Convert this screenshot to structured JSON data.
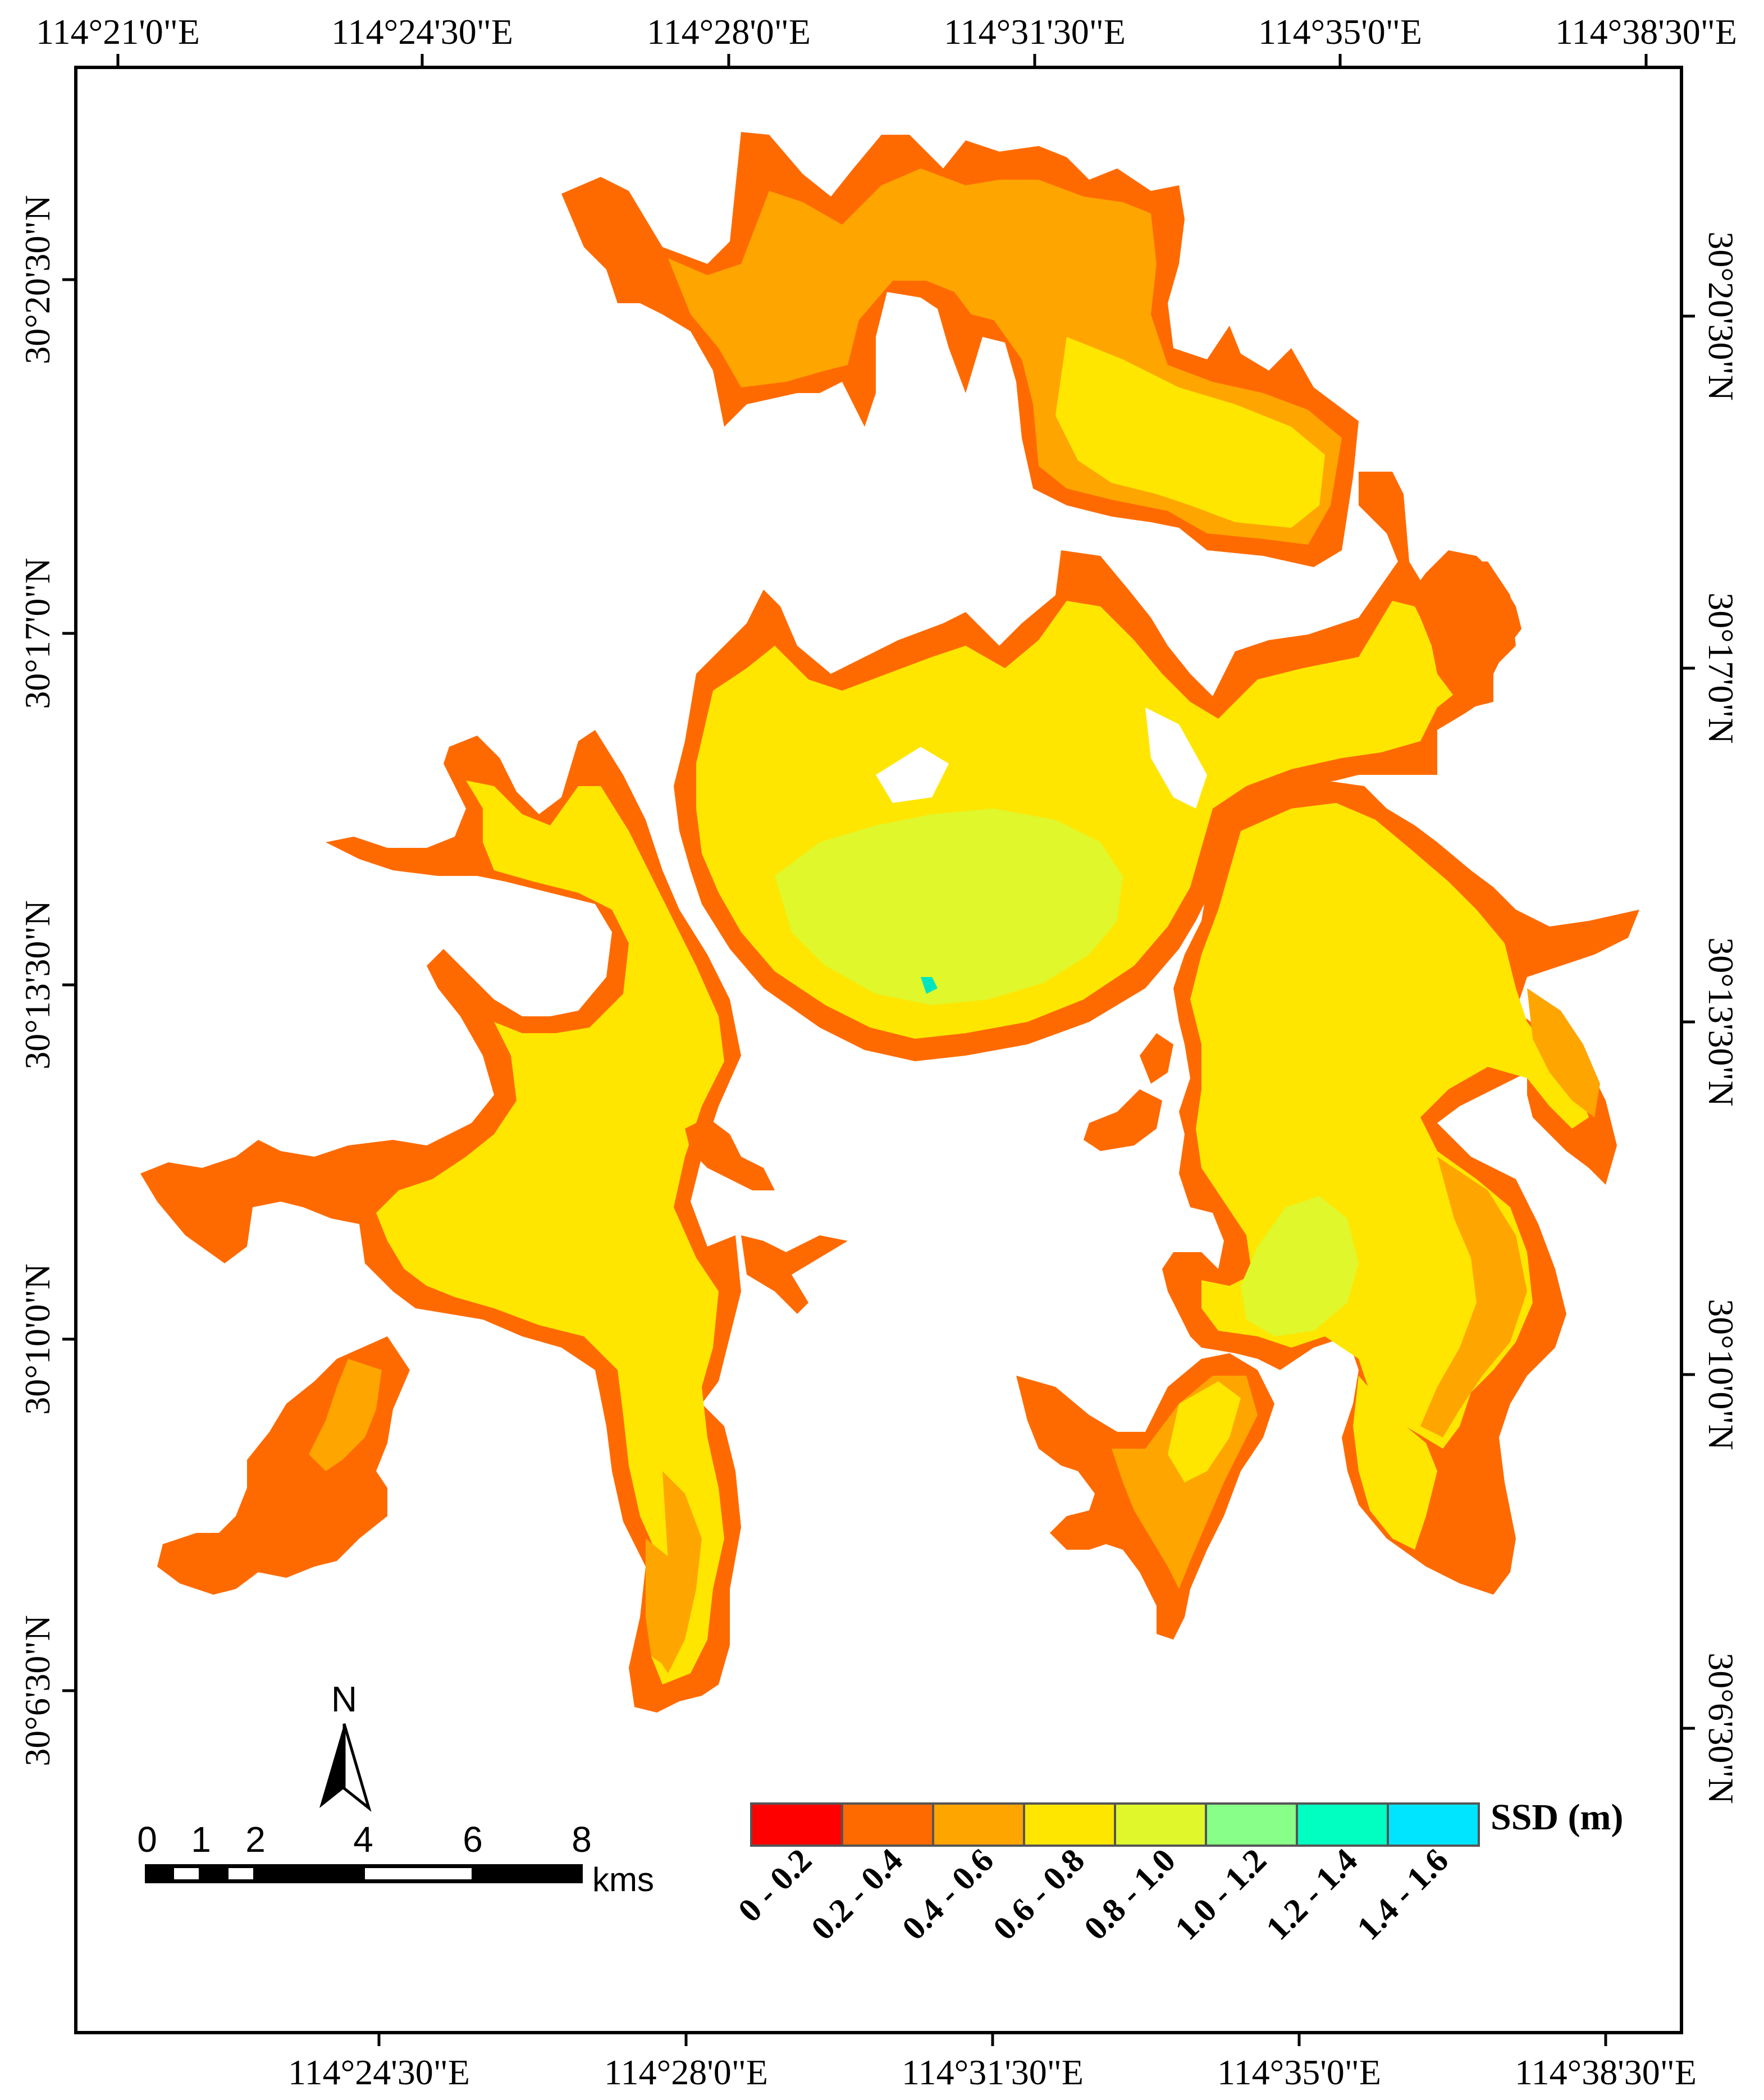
{
  "map": {
    "top_longitudes": [
      "114°21'0\"E",
      "114°24'30\"E",
      "114°28'0\"E",
      "114°31'30\"E",
      "114°35'0\"E",
      "114°38'30\"E"
    ],
    "bottom_longitudes": [
      "114°24'30\"E",
      "114°28'0\"E",
      "114°31'30\"E",
      "114°35'0\"E",
      "114°38'30\"E"
    ],
    "left_latitudes": [
      "30°20'30\"N",
      "30°17'0\"N",
      "30°13'30\"N",
      "30°10'0\"N",
      "30°6'30\"N"
    ],
    "right_latitudes": [
      "30°20'30\"N",
      "30°17'0\"N",
      "30°13'30\"N",
      "30°10'0\"N",
      "30°6'30\"N"
    ]
  },
  "north_arrow": {
    "label": "N"
  },
  "scale_bar": {
    "ticks": [
      "0",
      "1",
      "2",
      "4",
      "6",
      "8"
    ],
    "unit": "kms"
  },
  "legend": {
    "title": "SSD (m)",
    "classes": [
      {
        "label": "0 - 0.2",
        "color": "#ff0000"
      },
      {
        "label": "0.2 - 0.4",
        "color": "#ff6a00"
      },
      {
        "label": "0.4 - 0.6",
        "color": "#ffa500"
      },
      {
        "label": "0.6 - 0.8",
        "color": "#ffe600"
      },
      {
        "label": "0.8 - 1.0",
        "color": "#dff72b"
      },
      {
        "label": "1.0 - 1.2",
        "color": "#88ff88"
      },
      {
        "label": "1.2 - 1.4",
        "color": "#00ffc0"
      },
      {
        "label": "1.4 - 1.6",
        "color": "#00e5ff"
      }
    ]
  }
}
